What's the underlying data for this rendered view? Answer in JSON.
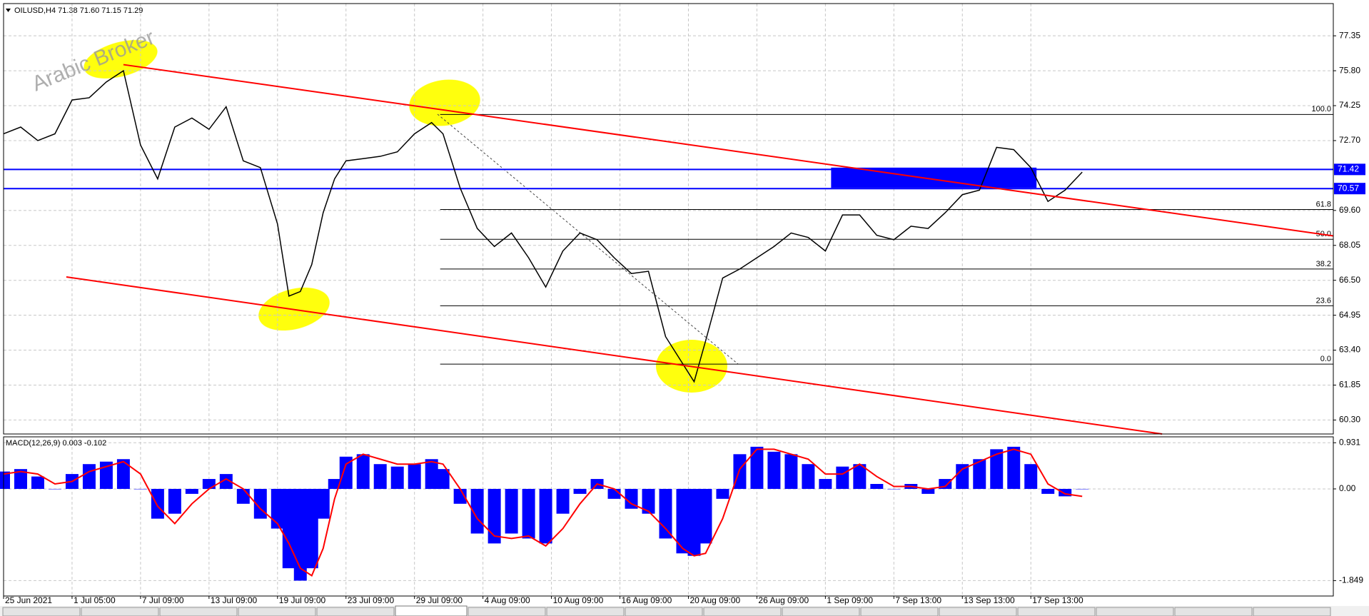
{
  "window": {
    "header": "OILUSD,H4 71.38 71.60 71.15 71.29",
    "watermark": "Arabic Broker"
  },
  "chart_data": [
    {
      "type": "line",
      "color": "#000000",
      "grid": true,
      "x": [
        0,
        6,
        12,
        18,
        24,
        30,
        36,
        42,
        48,
        54,
        60,
        66,
        72,
        78,
        84,
        90,
        96,
        100,
        104,
        108,
        112,
        116,
        120,
        126,
        132,
        138,
        144,
        150,
        154,
        160,
        166,
        172,
        178,
        184,
        190,
        196,
        202,
        208,
        214,
        220,
        226,
        232,
        238,
        242,
        246,
        252,
        258,
        264,
        270,
        276,
        282,
        288,
        294,
        300,
        306,
        312,
        318,
        324,
        330,
        336,
        342,
        348,
        354,
        360,
        366,
        372,
        378
      ],
      "values": [
        73.0,
        73.3,
        72.7,
        73.0,
        74.5,
        74.6,
        75.3,
        75.8,
        72.5,
        71.0,
        73.3,
        73.7,
        73.2,
        74.2,
        71.8,
        71.5,
        69.0,
        65.8,
        66.0,
        67.2,
        69.5,
        71.0,
        71.8,
        71.9,
        72.0,
        72.2,
        73.0,
        73.5,
        73.0,
        70.6,
        68.8,
        68.0,
        68.6,
        67.5,
        66.2,
        67.8,
        68.6,
        68.3,
        67.5,
        66.8,
        66.9,
        64.0,
        62.8,
        62.0,
        63.8,
        66.6,
        67.0,
        67.5,
        68.0,
        68.6,
        68.4,
        67.8,
        69.4,
        69.4,
        68.5,
        68.3,
        68.9,
        68.8,
        69.5,
        70.3,
        70.5,
        72.4,
        72.3,
        71.5,
        70.0,
        70.5,
        71.3
      ],
      "xlim": [
        0,
        466
      ],
      "xticks": [
        {
          "value": 0,
          "label": "25 Jun 2021"
        },
        {
          "value": 24,
          "label": "1 Jul 05:00"
        },
        {
          "value": 48,
          "label": "7 Jul 09:00"
        },
        {
          "value": 72,
          "label": "13 Jul 09:00"
        },
        {
          "value": 96,
          "label": "19 Jul 09:00"
        },
        {
          "value": 120,
          "label": "23 Jul 09:00"
        },
        {
          "value": 144,
          "label": "29 Jul 09:00"
        },
        {
          "value": 168,
          "label": "4 Aug 09:00"
        },
        {
          "value": 192,
          "label": "10 Aug 09:00"
        },
        {
          "value": 216,
          "label": "16 Aug 09:00"
        },
        {
          "value": 240,
          "label": "20 Aug 09:00"
        },
        {
          "value": 264,
          "label": "26 Aug 09:00"
        },
        {
          "value": 288,
          "label": "1 Sep 09:00"
        },
        {
          "value": 312,
          "label": "7 Sep 13:00"
        },
        {
          "value": 336,
          "label": "13 Sep 13:00"
        },
        {
          "value": 360,
          "label": "17 Sep 13:00"
        }
      ],
      "ylim": [
        59.68,
        78.78
      ],
      "yticks": [
        77.35,
        {
          "value": 75.8,
          "label": "75.80"
        },
        74.25,
        {
          "value": 72.7,
          "label": "72.70"
        },
        {
          "value": 69.6,
          "label": "69.60"
        },
        68.05,
        {
          "value": 66.5,
          "label": "66.50"
        },
        64.95,
        {
          "value": 63.4,
          "label": "63.40"
        },
        61.85,
        {
          "value": 60.3,
          "label": "60.30"
        }
      ],
      "levels": [
        {
          "price": 71.42,
          "color": "#0000ff"
        },
        {
          "price": 70.57,
          "color": "#0000ff"
        }
      ],
      "zone": {
        "x": [
          290,
          362
        ],
        "values": [
          71.5,
          70.6
        ],
        "color": "#0000ff"
      },
      "channel": [
        {
          "x": [
            42,
            466
          ],
          "values": [
            76.07,
            68.47
          ],
          "color": "#ff0000"
        },
        {
          "x": [
            22,
            406
          ],
          "values": [
            66.65,
            59.68
          ],
          "color": "#ff0000"
        }
      ],
      "fibonacci": {
        "x": [
          153,
          466
        ],
        "color": "#000000",
        "levels": [
          {
            "ratio": "100.0",
            "price": 73.86
          },
          {
            "ratio": "61.8",
            "price": 69.64
          },
          {
            "ratio": "50.0",
            "price": 68.32
          },
          {
            "ratio": "38.2",
            "price": 67.0
          },
          {
            "ratio": "23.6",
            "price": 65.37
          },
          {
            "ratio": "0.0",
            "price": 62.78
          }
        ]
      }
    },
    {
      "type": "macd",
      "title": "MACD(12,26,9) 0.003 -0.102",
      "color": "#0000ff",
      "x": [
        0,
        6,
        12,
        18,
        24,
        30,
        36,
        42,
        48,
        54,
        60,
        66,
        72,
        78,
        84,
        90,
        96,
        100,
        104,
        108,
        112,
        116,
        120,
        126,
        132,
        138,
        144,
        150,
        154,
        160,
        166,
        172,
        178,
        184,
        190,
        196,
        202,
        208,
        214,
        220,
        226,
        232,
        238,
        242,
        246,
        252,
        258,
        264,
        270,
        276,
        282,
        288,
        294,
        300,
        306,
        312,
        318,
        324,
        330,
        336,
        342,
        348,
        354,
        360,
        366,
        372,
        378
      ],
      "values": [
        0.35,
        0.4,
        0.25,
        0.0,
        0.3,
        0.5,
        0.55,
        0.6,
        0.0,
        -0.6,
        -0.5,
        -0.1,
        0.2,
        0.3,
        -0.3,
        -0.6,
        -0.8,
        -1.6,
        -1.85,
        -1.6,
        -0.6,
        0.2,
        0.65,
        0.7,
        0.5,
        0.45,
        0.5,
        0.6,
        0.4,
        -0.3,
        -0.9,
        -1.1,
        -0.9,
        -1.0,
        -1.1,
        -0.5,
        -0.1,
        0.2,
        -0.2,
        -0.4,
        -0.5,
        -1.0,
        -1.3,
        -1.35,
        -1.1,
        -0.2,
        0.7,
        0.85,
        0.75,
        0.7,
        0.5,
        0.2,
        0.45,
        0.5,
        0.1,
        0.0,
        0.1,
        -0.1,
        0.2,
        0.5,
        0.6,
        0.8,
        0.85,
        0.5,
        -0.1,
        -0.15,
        0.0
      ],
      "signal": {
        "color": "#ff0000",
        "values": [
          0.3,
          0.35,
          0.3,
          0.1,
          0.15,
          0.35,
          0.45,
          0.55,
          0.3,
          -0.35,
          -0.7,
          -0.3,
          0.0,
          0.2,
          0.0,
          -0.4,
          -0.7,
          -1.1,
          -1.6,
          -1.75,
          -1.2,
          -0.2,
          0.5,
          0.7,
          0.6,
          0.5,
          0.5,
          0.55,
          0.5,
          0.0,
          -0.6,
          -0.95,
          -1.0,
          -0.95,
          -1.15,
          -0.8,
          -0.3,
          0.1,
          0.0,
          -0.3,
          -0.45,
          -0.8,
          -1.2,
          -1.35,
          -1.3,
          -0.6,
          0.4,
          0.8,
          0.8,
          0.7,
          0.6,
          0.3,
          0.3,
          0.5,
          0.25,
          0.05,
          0.05,
          0.0,
          0.05,
          0.4,
          0.55,
          0.7,
          0.8,
          0.7,
          0.1,
          -0.1,
          -0.15
        ]
      },
      "xlim": [
        0,
        466
      ],
      "ylim": [
        -2.16,
        1.05
      ],
      "yticks": [
        0.931,
        {
          "value": 0,
          "label": "0.00"
        },
        -1.849
      ]
    }
  ]
}
